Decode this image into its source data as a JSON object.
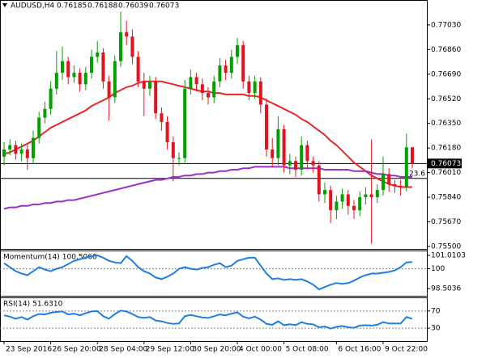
{
  "chart_data": [
    {
      "type": "candlestick",
      "title": "AUDUSD,H4",
      "header_values": [
        0.76185,
        0.76188,
        0.76039,
        0.76073
      ],
      "categories": [
        "23 Sep 2016",
        null,
        null,
        null,
        null,
        null,
        null,
        null,
        "26 Sep 20:00",
        null,
        null,
        null,
        null,
        null,
        null,
        null,
        "28 Sep 04:00",
        null,
        null,
        null,
        null,
        null,
        null,
        null,
        "29 Sep 12:00",
        null,
        null,
        null,
        null,
        null,
        null,
        null,
        "30 Sep 20:00",
        null,
        null,
        null,
        null,
        null,
        null,
        null,
        "4 Oct 00:00",
        null,
        null,
        null,
        null,
        null,
        null,
        null,
        "5 Oct 08:00",
        null,
        null,
        null,
        null,
        null,
        null,
        null,
        null,
        "6 Oct 16:00",
        null,
        null,
        null,
        null,
        null,
        null,
        null,
        "9 Oct 22:00",
        null,
        null,
        null,
        null,
        null
      ],
      "open": [
        0.7612,
        0.7617,
        0.762,
        0.7614,
        0.7617,
        0.7611,
        0.7625,
        0.7639,
        0.7645,
        0.7659,
        0.767,
        0.7678,
        0.7667,
        0.767,
        0.7662,
        0.767,
        0.7681,
        0.7684,
        0.7664,
        0.7653,
        0.7678,
        0.7698,
        0.7695,
        0.7681,
        0.7664,
        0.7659,
        0.7664,
        0.7642,
        0.7636,
        0.7622,
        0.7611,
        0.7611,
        0.7659,
        0.7667,
        0.7662,
        0.7656,
        0.7653,
        0.7664,
        0.7675,
        0.767,
        0.7681,
        0.7689,
        0.7664,
        0.7656,
        0.7664,
        0.7648,
        0.7617,
        0.7611,
        0.7631,
        0.7606,
        0.7609,
        0.7603,
        0.762,
        0.7609,
        0.7606,
        0.7586,
        0.7589,
        0.7575,
        0.7581,
        0.7586,
        0.7578,
        0.7575,
        0.7584,
        0.7586,
        0.7584,
        0.7589,
        0.76,
        0.7593,
        0.7592,
        0.7591,
        0.76185
      ],
      "high": [
        0.7622,
        0.7624,
        0.7623,
        0.7621,
        0.762,
        0.763,
        0.7643,
        0.765,
        0.7664,
        0.7685,
        0.7688,
        0.7681,
        0.7675,
        0.7673,
        0.7674,
        0.7686,
        0.7692,
        0.7687,
        0.7668,
        0.7682,
        0.7712,
        0.7706,
        0.77,
        0.7685,
        0.767,
        0.7668,
        0.7667,
        0.7646,
        0.764,
        0.7626,
        0.7615,
        0.7665,
        0.7672,
        0.767,
        0.7666,
        0.766,
        0.7668,
        0.768,
        0.7679,
        0.7686,
        0.7694,
        0.7692,
        0.7668,
        0.7668,
        0.7667,
        0.7652,
        0.7625,
        0.764,
        0.7634,
        0.7614,
        0.7612,
        0.7626,
        0.7623,
        0.7612,
        0.7609,
        0.7594,
        0.7592,
        0.7585,
        0.759,
        0.7589,
        0.7582,
        0.7588,
        0.7591,
        0.7624,
        0.7593,
        0.7612,
        0.7604,
        0.7596,
        0.7596,
        0.7628,
        0.76188
      ],
      "low": [
        0.7606,
        0.7613,
        0.761,
        0.7609,
        0.7603,
        0.7607,
        0.7621,
        0.7635,
        0.7641,
        0.7655,
        0.7665,
        0.7662,
        0.7663,
        0.7657,
        0.7658,
        0.7666,
        0.7677,
        0.7659,
        0.7637,
        0.7649,
        0.7674,
        0.7689,
        0.7676,
        0.766,
        0.764,
        0.7654,
        0.7638,
        0.763,
        0.7617,
        0.7595,
        0.7606,
        0.7608,
        0.7655,
        0.7657,
        0.7651,
        0.7648,
        0.7649,
        0.766,
        0.7665,
        0.7666,
        0.7676,
        0.7659,
        0.7651,
        0.7652,
        0.7642,
        0.7612,
        0.7605,
        0.7606,
        0.7601,
        0.76,
        0.7598,
        0.7599,
        0.7604,
        0.7601,
        0.7581,
        0.758,
        0.7566,
        0.7569,
        0.7576,
        0.7572,
        0.7569,
        0.7571,
        0.7579,
        0.7552,
        0.758,
        0.7585,
        0.7588,
        0.7587,
        0.7585,
        0.7588,
        0.76039
      ],
      "close": [
        0.7617,
        0.762,
        0.7614,
        0.7617,
        0.7611,
        0.7625,
        0.7639,
        0.7645,
        0.7659,
        0.767,
        0.7678,
        0.7667,
        0.767,
        0.7662,
        0.767,
        0.7681,
        0.7684,
        0.7664,
        0.7653,
        0.7678,
        0.7698,
        0.7695,
        0.7681,
        0.7664,
        0.7659,
        0.7664,
        0.7642,
        0.7636,
        0.7622,
        0.7611,
        0.7611,
        0.7659,
        0.7667,
        0.7662,
        0.7656,
        0.7653,
        0.7664,
        0.7675,
        0.767,
        0.7681,
        0.7689,
        0.7664,
        0.7656,
        0.7664,
        0.7648,
        0.7617,
        0.7611,
        0.7631,
        0.7606,
        0.7609,
        0.7603,
        0.762,
        0.7609,
        0.7606,
        0.7586,
        0.7589,
        0.7575,
        0.7581,
        0.7586,
        0.7578,
        0.7575,
        0.7584,
        0.7586,
        0.7584,
        0.7589,
        0.76,
        0.7593,
        0.7592,
        0.7591,
        0.76185,
        0.76073
      ],
      "up_color": "#00a000",
      "down_color": "#e0141e",
      "overlays": [
        {
          "color": "#e8262a",
          "values": [
            0.7614,
            0.7615,
            0.7617,
            0.7619,
            0.7621,
            0.7623,
            0.7626,
            0.7629,
            0.7632,
            0.7634,
            0.7636,
            0.7638,
            0.764,
            0.7642,
            0.7644,
            0.7647,
            0.7649,
            0.7651,
            0.7653,
            0.7656,
            0.7658,
            0.766,
            0.7661,
            0.7663,
            0.7664,
            0.7664,
            0.7664,
            0.7664,
            0.7663,
            0.7662,
            0.7661,
            0.766,
            0.7659,
            0.7658,
            0.7657,
            0.7657,
            0.7656,
            0.7656,
            0.7655,
            0.7655,
            0.7655,
            0.7655,
            0.7654,
            0.7654,
            0.7653,
            0.7651,
            0.7649,
            0.7647,
            0.7645,
            0.7643,
            0.7641,
            0.7638,
            0.7636,
            0.7633,
            0.763,
            0.7627,
            0.7623,
            0.762,
            0.7616,
            0.7612,
            0.7608,
            0.7605,
            0.7602,
            0.7599,
            0.7597,
            0.7595,
            0.7593,
            0.7592,
            0.7591,
            0.7591,
            0.7591
          ]
        },
        {
          "color": "#9b30c8",
          "values": [
            0.7576,
            0.7577,
            0.7577,
            0.7578,
            0.7578,
            0.7579,
            0.7579,
            0.758,
            0.758,
            0.7581,
            0.7581,
            0.7582,
            0.7582,
            0.7583,
            0.7584,
            0.7585,
            0.7586,
            0.7587,
            0.7588,
            0.7589,
            0.759,
            0.7591,
            0.7592,
            0.7593,
            0.7594,
            0.7595,
            0.7596,
            0.7596,
            0.7597,
            0.7598,
            0.7598,
            0.7599,
            0.7599,
            0.76,
            0.76,
            0.7601,
            0.7601,
            0.7602,
            0.7602,
            0.7603,
            0.7603,
            0.7604,
            0.7604,
            0.7605,
            0.7605,
            0.7605,
            0.7605,
            0.7605,
            0.7605,
            0.7604,
            0.7604,
            0.7604,
            0.7604,
            0.7604,
            0.7604,
            0.7603,
            0.7603,
            0.7603,
            0.7603,
            0.7603,
            0.7602,
            0.7602,
            0.7602,
            0.7601,
            0.76,
            0.76,
            0.7599,
            0.7599,
            0.7598,
            0.7598,
            0.7598
          ]
        }
      ],
      "ylim": [
        0.75483,
        0.77197
      ],
      "yticks": [
        {
          "value": 0.7703,
          "label": "0.77030"
        },
        {
          "value": 0.7686,
          "label": "0.76860"
        },
        {
          "value": 0.7669,
          "label": "0.76690"
        },
        {
          "value": 0.7652,
          "label": "0.76520"
        },
        {
          "value": 0.7635,
          "label": "0.76350"
        },
        {
          "value": 0.7618,
          "label": "0.76180"
        },
        {
          "value": 0.7601,
          "label": "0.76010"
        },
        {
          "value": 0.7584,
          "label": "0.75840"
        },
        {
          "value": 0.7567,
          "label": "0.75670"
        },
        {
          "value": 0.755,
          "label": "0.75500"
        }
      ],
      "price_line": 0.76073,
      "fib_levels": [
        {
          "value": 0.7597,
          "label": "23.6"
        }
      ]
    },
    {
      "type": "line",
      "title": "Momentum(14)",
      "last_label": "100.5060",
      "color": "#1e7fe0",
      "values": [
        100.42,
        100.12,
        99.82,
        99.64,
        99.52,
        99.82,
        100.12,
        99.94,
        99.82,
        100.0,
        100.12,
        100.36,
        100.6,
        100.72,
        100.84,
        100.96,
        101.02,
        100.84,
        100.6,
        100.48,
        100.42,
        100.96,
        100.6,
        100.12,
        99.82,
        99.64,
        99.34,
        99.22,
        99.4,
        99.64,
        100.0,
        100.12,
        100.0,
        99.94,
        100.06,
        100.12,
        100.3,
        100.42,
        100.12,
        100.24,
        100.6,
        100.72,
        100.84,
        100.84,
        100.24,
        99.64,
        99.22,
        99.28,
        99.16,
        99.22,
        99.16,
        99.22,
        99.04,
        98.8,
        98.44,
        98.62,
        98.8,
        98.92,
        98.86,
        98.92,
        99.1,
        99.34,
        99.52,
        99.64,
        99.64,
        99.7,
        99.76,
        99.88,
        100.12,
        100.48,
        100.506
      ],
      "ylim": [
        97.96,
        101.32
      ],
      "yticks": [
        101.0103,
        100,
        98.5036
      ],
      "levels": [
        100
      ]
    },
    {
      "type": "line",
      "title": "RSI(14)",
      "last_label": "51.6310",
      "color": "#1e7fe0",
      "values": [
        60,
        57,
        52,
        56,
        50,
        58,
        63,
        62,
        66,
        68,
        69,
        62,
        64,
        60,
        65,
        69,
        70,
        58,
        52,
        63,
        71,
        69,
        63,
        56,
        54,
        56,
        48,
        46,
        42,
        40,
        41,
        58,
        61,
        58,
        55,
        54,
        58,
        62,
        60,
        64,
        67,
        57,
        53,
        57,
        50,
        40,
        38,
        46,
        37,
        39,
        37,
        44,
        40,
        39,
        32,
        34,
        29,
        33,
        35,
        32,
        31,
        36,
        37,
        36,
        38,
        44,
        41,
        41,
        41,
        56,
        51.631
      ],
      "ylim": [
        0,
        100
      ],
      "yticks": [
        70,
        30
      ],
      "levels": [
        70,
        30
      ]
    }
  ]
}
